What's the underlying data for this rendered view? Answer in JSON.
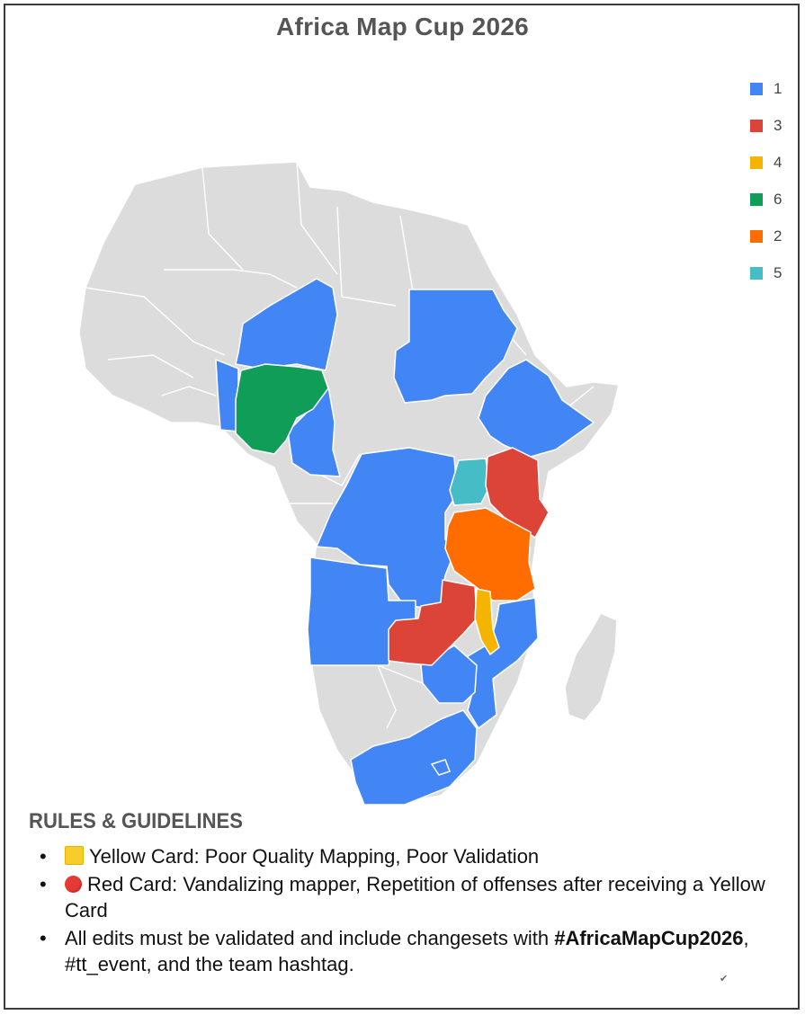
{
  "title": "Africa Map Cup 2026",
  "legend": [
    {
      "label": "1",
      "color": "#4285f4"
    },
    {
      "label": "3",
      "color": "#db4437"
    },
    {
      "label": "4",
      "color": "#f4b400"
    },
    {
      "label": "6",
      "color": "#0f9d58"
    },
    {
      "label": "2",
      "color": "#ff6d00"
    },
    {
      "label": "5",
      "color": "#46bdc6"
    }
  ],
  "map_colors": {
    "base": "#dcdcdc",
    "border": "#ffffff",
    "group_1": "#4285f4",
    "group_2": "#ff6d00",
    "group_3": "#db4437",
    "group_4": "#f4b400",
    "group_5": "#46bdc6",
    "group_6": "#0f9d58"
  },
  "rules": {
    "heading": "RULES & GUIDELINES",
    "yellow_card": "Yellow Card: Poor Quality Mapping, Poor Validation",
    "red_card": "Red Card: Vandalizing mapper, Repetition of offenses after receiving a Yellow Card",
    "edits_prefix": "All edits must be validated and include changesets with ",
    "edits_hashtag": "#AfricaMapCup2026",
    "edits_suffix": ", #tt_event, and the team hashtag."
  }
}
